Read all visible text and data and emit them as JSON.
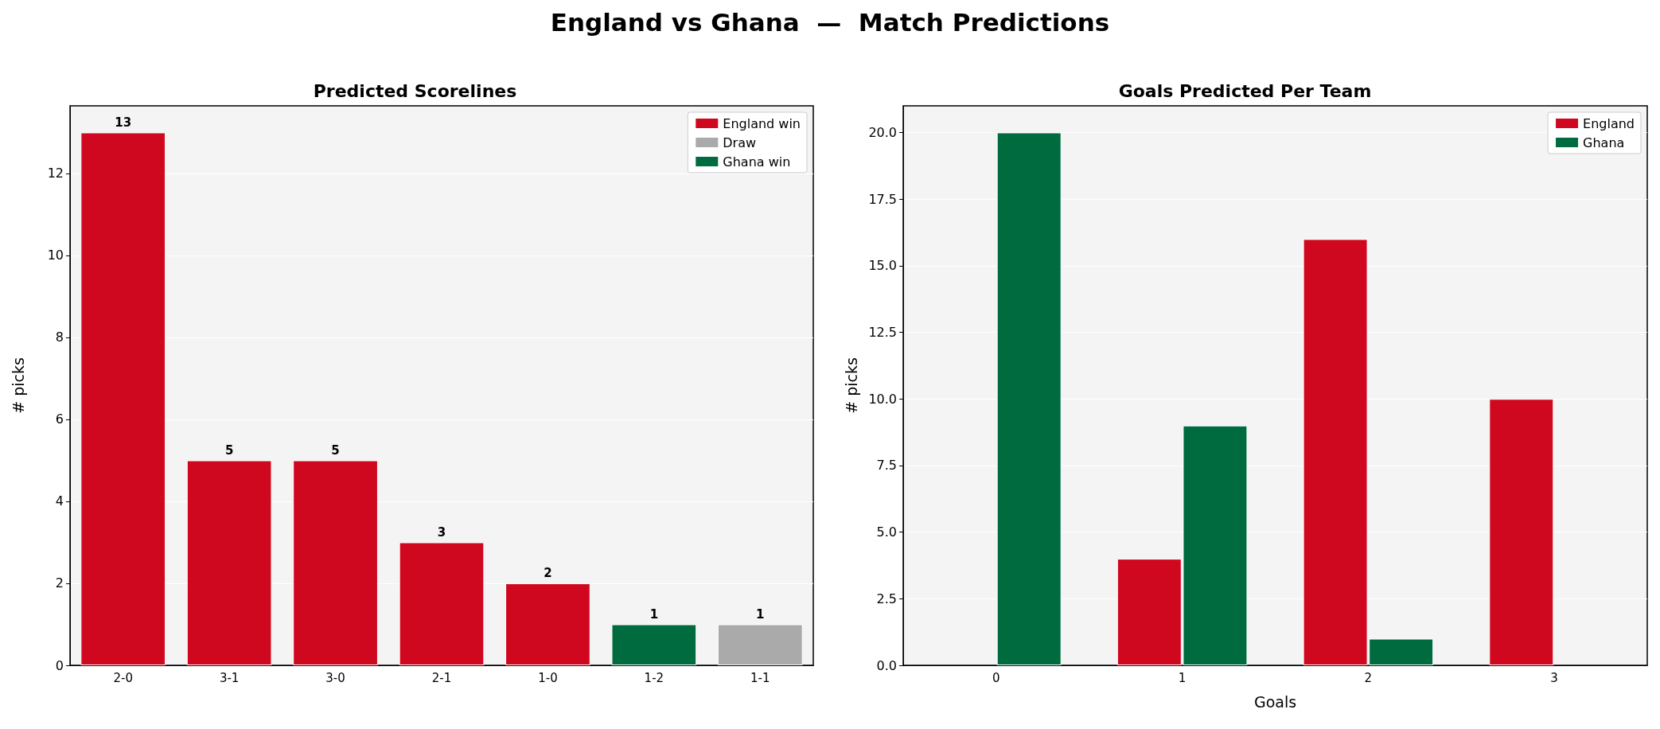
{
  "chart_data": [
    {
      "type": "bar",
      "title": "England vs Ghana  —  Match Predictions",
      "subtitle": "Predicted Scorelines",
      "ylabel": "# picks",
      "categories": [
        "2-0",
        "3-1",
        "3-0",
        "2-1",
        "1-0",
        "1-2",
        "1-1"
      ],
      "stacked": true,
      "data_labels": true,
      "series": [
        {
          "name": "England win",
          "color": "#d0081f",
          "values": [
            13,
            5,
            5,
            3,
            2,
            null,
            null
          ]
        },
        {
          "name": "Draw",
          "color": "#aaaaaa",
          "values": [
            null,
            null,
            null,
            null,
            null,
            null,
            1
          ]
        },
        {
          "name": "Ghana win",
          "color": "#006b3f",
          "values": [
            null,
            null,
            null,
            null,
            null,
            1,
            null
          ]
        }
      ],
      "ylim": [
        0,
        13.65
      ],
      "yticks": [
        0,
        2,
        4,
        6,
        8,
        10,
        12
      ],
      "grid": "y",
      "legend": "top right"
    },
    {
      "type": "bar",
      "title": "Goals Predicted Per Team",
      "xlabel": "Goals",
      "ylabel": "# picks",
      "categories": [
        "0",
        "1",
        "2",
        "3"
      ],
      "series": [
        {
          "name": "England",
          "color": "#d0081f",
          "values": [
            0,
            4,
            16,
            10
          ]
        },
        {
          "name": "Ghana",
          "color": "#006b3f",
          "values": [
            20,
            9,
            1,
            0
          ]
        }
      ],
      "ylim": [
        0,
        21
      ],
      "yticks": [
        {
          "value": 0,
          "label": "0.0"
        },
        {
          "value": 2.5,
          "label": "2.5"
        },
        {
          "value": 5,
          "label": "5.0"
        },
        {
          "value": 7.5,
          "label": "7.5"
        },
        {
          "value": 10,
          "label": "10.0"
        },
        {
          "value": 12.5,
          "label": "12.5"
        },
        {
          "value": 15,
          "label": "15.0"
        },
        {
          "value": 17.5,
          "label": "17.5"
        },
        {
          "value": 20,
          "label": "20.0"
        }
      ],
      "grid": "y",
      "legend": "top right"
    }
  ]
}
